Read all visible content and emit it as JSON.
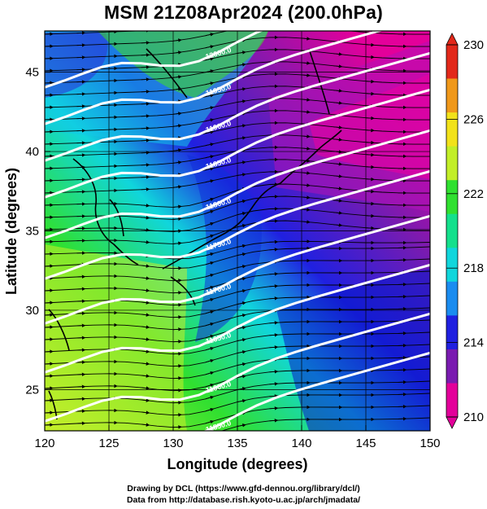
{
  "title": "MSM 21Z08Apr2024 (200.0hPa)",
  "x_axis": {
    "label": "Longitude (degrees)",
    "ticks": [
      "120",
      "125",
      "130",
      "135",
      "140",
      "145",
      "150"
    ],
    "range": [
      120,
      150
    ]
  },
  "y_axis": {
    "label": "Latitude  (degrees)",
    "ticks": [
      "25",
      "30",
      "35",
      "40",
      "45"
    ],
    "range": [
      22.4,
      47.6
    ]
  },
  "colorbar": {
    "ticks": [
      "230",
      "226",
      "222",
      "218",
      "214",
      "210"
    ],
    "range": [
      210,
      230
    ],
    "colors": [
      "#e3009a",
      "#7a1bb0",
      "#2020e0",
      "#1a8cf0",
      "#10d6dc",
      "#14e08c",
      "#30e030",
      "#c2ee28",
      "#f2e21a",
      "#f0981a",
      "#e2281a"
    ]
  },
  "contour_labels": [
    "12000.0",
    "11950.0",
    "11900.0",
    "11850.0",
    "11800.0",
    "11750.0",
    "11700.0",
    "11650.0",
    "11600.0",
    "11550.0"
  ],
  "credits": {
    "line1": "Drawing by DCL (https://www.gfd-dennou.org/library/dcl/)",
    "line2": "Data from http://database.rish.kyoto-u.ac.jp/arch/jmadata/"
  }
}
